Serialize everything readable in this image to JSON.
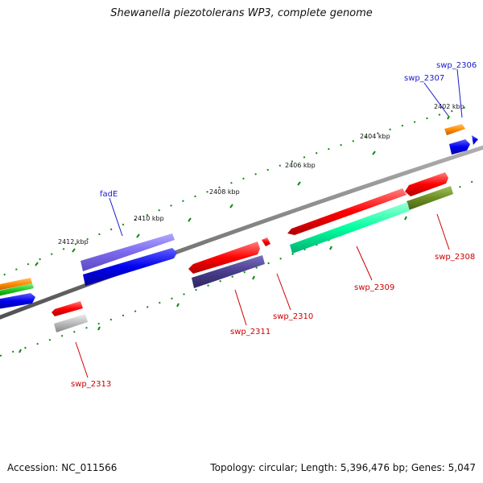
{
  "title": "Shewanella piezotolerans WP3, complete genome",
  "footer": {
    "accession": "Accession: NC_011566",
    "summary": "Topology: circular; Length: 5,396,476 bp; Genes: 5,047"
  },
  "colors": {
    "red": "#ff0000",
    "blue": "#0000ee",
    "slate_blue": "#7b68ee",
    "dark_slate": "#483d8b",
    "spring_green": "#00ffa0",
    "olive": "#6b8e23",
    "orange": "#ff8c00",
    "green": "#22cc22",
    "gray": "#bbbbbb",
    "backbone": "#808080",
    "ticks": "#118811"
  },
  "kbp_labels": [
    "2402 kbp",
    "2404 kbp",
    "2406 kbp",
    "2408 kbp",
    "2410 kbp",
    "2412 kbp"
  ],
  "gene_labels": {
    "swp_2306": "swp_2306",
    "swp_2307": "swp_2307",
    "swp_2308": "swp_2308",
    "swp_2309": "swp_2309",
    "swp_2310": "swp_2310",
    "swp_2311": "swp_2311",
    "swp_2313": "swp_2313",
    "fadE": "fadE"
  }
}
